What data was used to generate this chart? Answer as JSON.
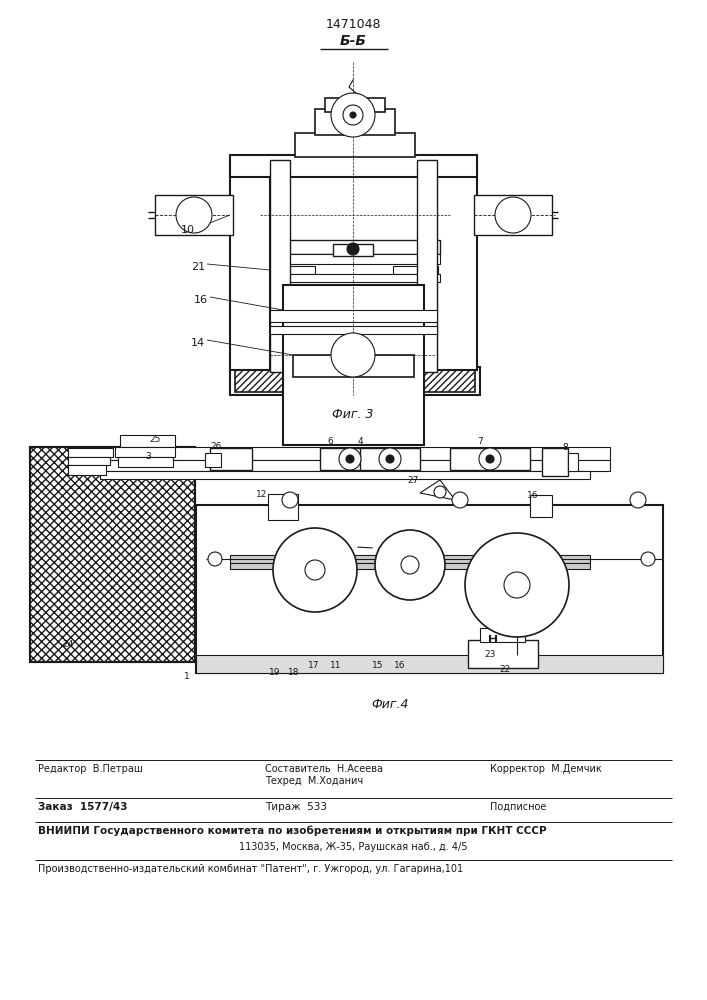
{
  "patent_number": "1471048",
  "section_label": "Б-Б",
  "fig3_caption": "Фиг. 3",
  "fig4_caption": "Фиг.4",
  "bg_color": "#ffffff",
  "line_color": "#1a1a1a",
  "footer": {
    "editor": "Редактор  В.Петраш",
    "composer": "Составитель  Н.Асеева",
    "techred": "Техред  М.Ходанич",
    "corrector": "Корректор  М.Демчик",
    "order": "Заказ  1577/43",
    "tirazh": "Тираж  533",
    "podpisnoe": "Подписное",
    "vniip1": "ВНИИПИ Государственного комитета по изобретениям и открытиям при ГКНТ СССР",
    "vniip2": "113035, Москва, Ж-35, Раушская наб., д. 4/5",
    "publisher": "Производственно-издательский комбинат \"Патент\", г. Ужгород, ул. Гагарина,101"
  }
}
